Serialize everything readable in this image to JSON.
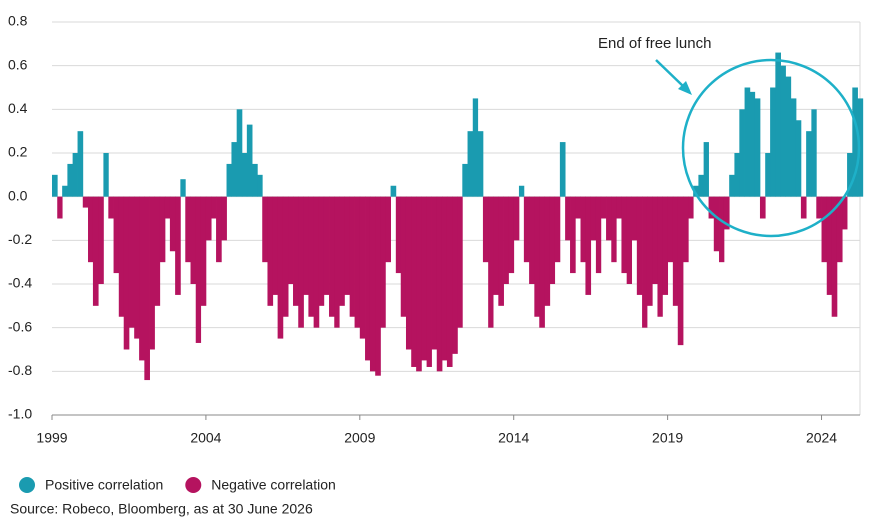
{
  "chart_data": {
    "type": "area",
    "annotation": "End of free lunch",
    "source": "Source: Robeco, Bloomberg, as at 30 June 2026",
    "legend": [
      {
        "name": "Positive correlation",
        "color": "#1a9bb0"
      },
      {
        "name": "Negative correlation",
        "color": "#b5135f"
      }
    ],
    "xlim": [
      1999,
      2025.25
    ],
    "xticks": [
      1999,
      2004,
      2009,
      2014,
      2019,
      2024
    ],
    "ylim": [
      -1.0,
      0.8
    ],
    "yticks": [
      {
        "value": -1.0,
        "label": "-1.0"
      },
      -0.8,
      -0.6,
      -0.4,
      -0.2,
      {
        "value": 0,
        "label": "0.0"
      },
      0.2,
      0.4,
      0.6,
      0.8
    ],
    "grid": true,
    "x": [
      1999,
      1999.17,
      1999.33,
      1999.5,
      1999.67,
      1999.83,
      2000,
      2000.17,
      2000.33,
      2000.5,
      2000.67,
      2000.83,
      2001,
      2001.17,
      2001.33,
      2001.5,
      2001.67,
      2001.83,
      2002,
      2002.17,
      2002.33,
      2002.5,
      2002.67,
      2002.83,
      2003,
      2003.17,
      2003.33,
      2003.5,
      2003.67,
      2003.83,
      2004,
      2004.17,
      2004.33,
      2004.5,
      2004.67,
      2004.83,
      2005,
      2005.17,
      2005.33,
      2005.5,
      2005.67,
      2005.83,
      2006,
      2006.17,
      2006.33,
      2006.5,
      2006.67,
      2006.83,
      2007,
      2007.17,
      2007.33,
      2007.5,
      2007.67,
      2007.83,
      2008,
      2008.17,
      2008.33,
      2008.5,
      2008.67,
      2008.83,
      2009,
      2009.17,
      2009.33,
      2009.5,
      2009.67,
      2009.83,
      2010,
      2010.17,
      2010.33,
      2010.5,
      2010.67,
      2010.83,
      2011,
      2011.17,
      2011.33,
      2011.5,
      2011.67,
      2011.83,
      2012,
      2012.17,
      2012.33,
      2012.5,
      2012.67,
      2012.83,
      2013,
      2013.17,
      2013.33,
      2013.5,
      2013.67,
      2013.83,
      2014,
      2014.17,
      2014.33,
      2014.5,
      2014.67,
      2014.83,
      2015,
      2015.17,
      2015.33,
      2015.5,
      2015.67,
      2015.83,
      2016,
      2016.17,
      2016.33,
      2016.5,
      2016.67,
      2016.83,
      2017,
      2017.17,
      2017.33,
      2017.5,
      2017.67,
      2017.83,
      2018,
      2018.17,
      2018.33,
      2018.5,
      2018.67,
      2018.83,
      2019,
      2019.17,
      2019.33,
      2019.5,
      2019.67,
      2019.83,
      2020,
      2020.17,
      2020.33,
      2020.5,
      2020.67,
      2020.83,
      2021,
      2021.17,
      2021.33,
      2021.5,
      2021.67,
      2021.83,
      2022,
      2022.17,
      2022.33,
      2022.5,
      2022.67,
      2022.83,
      2023,
      2023.17,
      2023.33,
      2023.5,
      2023.67,
      2023.83,
      2024,
      2024.17,
      2024.33,
      2024.5,
      2024.67,
      2024.83,
      2025,
      2025.17
    ],
    "values": [
      0.1,
      -0.1,
      0.05,
      0.15,
      0.2,
      0.3,
      -0.05,
      -0.3,
      -0.5,
      -0.4,
      0.2,
      -0.1,
      -0.35,
      -0.55,
      -0.7,
      -0.6,
      -0.65,
      -0.75,
      -0.84,
      -0.7,
      -0.5,
      -0.3,
      -0.1,
      -0.25,
      -0.45,
      0.08,
      -0.3,
      -0.4,
      -0.67,
      -0.5,
      -0.2,
      -0.1,
      -0.3,
      -0.2,
      0.15,
      0.25,
      0.4,
      0.2,
      0.33,
      0.15,
      0.1,
      -0.3,
      -0.5,
      -0.45,
      -0.65,
      -0.55,
      -0.4,
      -0.5,
      -0.6,
      -0.45,
      -0.55,
      -0.6,
      -0.5,
      -0.45,
      -0.55,
      -0.6,
      -0.5,
      -0.45,
      -0.55,
      -0.6,
      -0.65,
      -0.75,
      -0.8,
      -0.82,
      -0.6,
      -0.3,
      0.05,
      -0.35,
      -0.55,
      -0.7,
      -0.78,
      -0.8,
      -0.75,
      -0.78,
      -0.7,
      -0.8,
      -0.75,
      -0.78,
      -0.72,
      -0.6,
      0.15,
      0.3,
      0.45,
      0.3,
      -0.3,
      -0.6,
      -0.45,
      -0.5,
      -0.4,
      -0.35,
      -0.2,
      0.05,
      -0.3,
      -0.4,
      -0.55,
      -0.6,
      -0.5,
      -0.4,
      -0.3,
      0.25,
      -0.2,
      -0.35,
      -0.1,
      -0.3,
      -0.45,
      -0.2,
      -0.35,
      -0.1,
      -0.2,
      -0.3,
      -0.1,
      -0.35,
      -0.4,
      -0.2,
      -0.45,
      -0.6,
      -0.5,
      -0.4,
      -0.55,
      -0.45,
      -0.3,
      -0.5,
      -0.68,
      -0.3,
      -0.1,
      0.05,
      0.1,
      0.25,
      -0.1,
      -0.25,
      -0.3,
      -0.15,
      0.1,
      0.2,
      0.4,
      0.5,
      0.48,
      0.45,
      -0.1,
      0.2,
      0.5,
      0.66,
      0.6,
      0.55,
      0.45,
      0.35,
      -0.1,
      0.3,
      0.4,
      -0.1,
      -0.3,
      -0.45,
      -0.55,
      -0.3,
      -0.15,
      0.2,
      0.5,
      0.45
    ]
  }
}
